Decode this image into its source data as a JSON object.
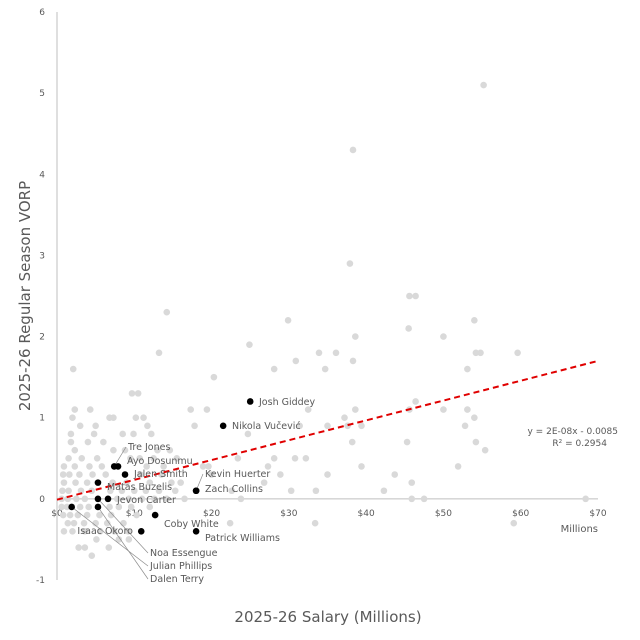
{
  "chart_data": {
    "type": "scatter",
    "title": "",
    "xlabel": "2025-26 Salary (Millions)",
    "ylabel": "2025-26 Regular Season VORP",
    "x_unit_label": "Millions",
    "xlim": [
      0,
      70
    ],
    "ylim": [
      -1,
      6
    ],
    "x_ticks": [
      0,
      10,
      20,
      30,
      40,
      50,
      60,
      70
    ],
    "x_tick_labels": [
      "$0",
      "$10",
      "$20",
      "$30",
      "$40",
      "$50",
      "$60",
      "$70"
    ],
    "y_ticks": [
      -1,
      0,
      1,
      2,
      3,
      4,
      5,
      6
    ],
    "y_tick_labels": [
      "-1",
      "0",
      "1",
      "2",
      "3",
      "4",
      "5",
      "6"
    ],
    "grid": false,
    "colors": {
      "others": "#d9d9d9",
      "highlight": "#000000",
      "trendline": "#e00000",
      "text": "#595959"
    },
    "trendline": {
      "type": "linear",
      "equation": "y = 2E-08x - 0.0085",
      "r_squared": "R² = 0.2954",
      "endpoints": [
        [
          0,
          -0.01
        ],
        [
          70,
          1.7
        ]
      ]
    },
    "highlighted": [
      {
        "name": "Josh Giddey",
        "x": 25.0,
        "y": 1.2
      },
      {
        "name": "Nikola Vučević",
        "x": 21.5,
        "y": 0.9
      },
      {
        "name": "Ayo Dosunmu",
        "x": 7.9,
        "y": 0.4
      },
      {
        "name": "Tre Jones",
        "x": 7.4,
        "y": 0.4
      },
      {
        "name": "Jalen Smith",
        "x": 8.8,
        "y": 0.3
      },
      {
        "name": "Matas Buzelis",
        "x": 5.3,
        "y": 0.2
      },
      {
        "name": "Zach Collins",
        "x": 18.0,
        "y": 0.1
      },
      {
        "name": "Kevin Huerter",
        "x": 18.0,
        "y": 0.1
      },
      {
        "name": "Noa Essengue",
        "x": 5.3,
        "y": 0.0
      },
      {
        "name": "Jevon Carter",
        "x": 6.6,
        "y": 0.0
      },
      {
        "name": "Julian Phillips",
        "x": 1.9,
        "y": -0.1
      },
      {
        "name": "Dalen Terry",
        "x": 5.3,
        "y": -0.1
      },
      {
        "name": "Coby White",
        "x": 12.7,
        "y": -0.2
      },
      {
        "name": "Isaac Okoro",
        "x": 10.9,
        "y": -0.4
      },
      {
        "name": "Patrick Williams",
        "x": 18.0,
        "y": -0.4
      }
    ],
    "others": [
      [
        55.2,
        5.1
      ],
      [
        38.3,
        4.3
      ],
      [
        37.9,
        2.9
      ],
      [
        14.2,
        2.3
      ],
      [
        29.9,
        2.2
      ],
      [
        45.6,
        2.5
      ],
      [
        46.4,
        2.5
      ],
      [
        54.0,
        2.2
      ],
      [
        45.5,
        2.1
      ],
      [
        50.0,
        2.0
      ],
      [
        38.6,
        2.0
      ],
      [
        24.9,
        1.9
      ],
      [
        33.9,
        1.8
      ],
      [
        13.2,
        1.8
      ],
      [
        36.1,
        1.8
      ],
      [
        54.2,
        1.8
      ],
      [
        54.8,
        1.8
      ],
      [
        59.6,
        1.8
      ],
      [
        38.3,
        1.7
      ],
      [
        30.9,
        1.7
      ],
      [
        53.1,
        1.6
      ],
      [
        2.1,
        1.6
      ],
      [
        28.1,
        1.6
      ],
      [
        20.3,
        1.5
      ],
      [
        34.7,
        1.6
      ],
      [
        9.7,
        1.3
      ],
      [
        10.5,
        1.3
      ],
      [
        2.3,
        1.1
      ],
      [
        4.3,
        1.1
      ],
      [
        17.3,
        1.1
      ],
      [
        19.4,
        1.1
      ],
      [
        32.5,
        1.1
      ],
      [
        38.6,
        1.1
      ],
      [
        46.4,
        1.2
      ],
      [
        53.1,
        1.1
      ],
      [
        37.2,
        1.0
      ],
      [
        45.6,
        1.1
      ],
      [
        50.0,
        1.1
      ],
      [
        31.4,
        0.9
      ],
      [
        35.0,
        0.9
      ],
      [
        37.6,
        0.9
      ],
      [
        39.4,
        0.9
      ],
      [
        52.8,
        0.9
      ],
      [
        54.0,
        1.0
      ],
      [
        24.7,
        0.8
      ],
      [
        38.2,
        0.7
      ],
      [
        45.3,
        0.7
      ],
      [
        54.2,
        0.7
      ],
      [
        55.4,
        0.6
      ],
      [
        51.9,
        0.4
      ],
      [
        39.4,
        0.4
      ],
      [
        35.0,
        0.3
      ],
      [
        43.7,
        0.3
      ],
      [
        45.9,
        0.2
      ],
      [
        30.3,
        0.1
      ],
      [
        33.5,
        0.1
      ],
      [
        42.3,
        0.1
      ],
      [
        45.9,
        0.0
      ],
      [
        47.5,
        0.0
      ],
      [
        68.4,
        0.0
      ],
      [
        59.1,
        -0.3
      ],
      [
        33.4,
        -0.3
      ],
      [
        27.3,
        0.4
      ],
      [
        26.8,
        0.2
      ],
      [
        23.4,
        0.5
      ],
      [
        28.1,
        0.5
      ],
      [
        22.6,
        0.1
      ],
      [
        23.8,
        0.0
      ],
      [
        22.4,
        -0.3
      ],
      [
        28.9,
        0.3
      ],
      [
        30.8,
        0.5
      ],
      [
        32.2,
        0.5
      ],
      [
        18.9,
        0.4
      ],
      [
        19.6,
        0.4
      ],
      [
        16.0,
        0.2
      ],
      [
        20.0,
        0.3
      ],
      [
        14.6,
        0.6
      ],
      [
        17.8,
        0.9
      ],
      [
        11.7,
        0.9
      ],
      [
        13.0,
        0.6
      ],
      [
        2.0,
        1.0
      ],
      [
        3.0,
        0.9
      ],
      [
        5.0,
        0.9
      ],
      [
        6.8,
        1.0
      ],
      [
        7.3,
        1.0
      ],
      [
        10.2,
        1.0
      ],
      [
        11.2,
        1.0
      ],
      [
        1.8,
        0.8
      ],
      [
        4.8,
        0.8
      ],
      [
        8.5,
        0.8
      ],
      [
        9.9,
        0.8
      ],
      [
        12.2,
        0.8
      ],
      [
        1.8,
        0.7
      ],
      [
        2.3,
        0.6
      ],
      [
        4.0,
        0.7
      ],
      [
        6.0,
        0.7
      ],
      [
        7.3,
        0.6
      ],
      [
        8.8,
        0.6
      ],
      [
        1.5,
        0.5
      ],
      [
        3.2,
        0.5
      ],
      [
        5.2,
        0.5
      ],
      [
        9.5,
        0.5
      ],
      [
        10.7,
        0.5
      ],
      [
        12.5,
        0.5
      ],
      [
        15.5,
        0.5
      ],
      [
        0.9,
        0.4
      ],
      [
        2.3,
        0.4
      ],
      [
        4.2,
        0.4
      ],
      [
        5.8,
        0.4
      ],
      [
        11.6,
        0.4
      ],
      [
        13.8,
        0.4
      ],
      [
        0.8,
        0.3
      ],
      [
        1.6,
        0.3
      ],
      [
        2.9,
        0.3
      ],
      [
        4.6,
        0.3
      ],
      [
        6.3,
        0.3
      ],
      [
        10.8,
        0.3
      ],
      [
        13.5,
        0.3
      ],
      [
        0.9,
        0.2
      ],
      [
        2.4,
        0.2
      ],
      [
        3.9,
        0.2
      ],
      [
        7.2,
        0.2
      ],
      [
        9.0,
        0.2
      ],
      [
        12.0,
        0.2
      ],
      [
        14.8,
        0.2
      ],
      [
        0.7,
        0.1
      ],
      [
        1.5,
        0.1
      ],
      [
        3.1,
        0.1
      ],
      [
        4.5,
        0.1
      ],
      [
        6.9,
        0.1
      ],
      [
        8.4,
        0.1
      ],
      [
        10.0,
        0.1
      ],
      [
        11.5,
        0.1
      ],
      [
        13.2,
        0.1
      ],
      [
        15.3,
        0.1
      ],
      [
        0.6,
        0.0
      ],
      [
        1.4,
        0.0
      ],
      [
        2.5,
        0.0
      ],
      [
        3.6,
        0.0
      ],
      [
        7.8,
        0.0
      ],
      [
        9.3,
        0.0
      ],
      [
        11.0,
        0.0
      ],
      [
        12.6,
        0.0
      ],
      [
        14.2,
        0.0
      ],
      [
        16.5,
        0.0
      ],
      [
        0.6,
        -0.1
      ],
      [
        1.3,
        -0.1
      ],
      [
        3.0,
        -0.1
      ],
      [
        4.1,
        -0.1
      ],
      [
        6.8,
        -0.1
      ],
      [
        8.0,
        -0.1
      ],
      [
        9.6,
        -0.1
      ],
      [
        12.0,
        -0.1
      ],
      [
        0.8,
        -0.2
      ],
      [
        1.7,
        -0.2
      ],
      [
        2.7,
        -0.2
      ],
      [
        3.9,
        -0.2
      ],
      [
        5.5,
        -0.2
      ],
      [
        7.0,
        -0.2
      ],
      [
        10.3,
        -0.2
      ],
      [
        1.4,
        -0.3
      ],
      [
        2.2,
        -0.3
      ],
      [
        3.5,
        -0.3
      ],
      [
        5.0,
        -0.3
      ],
      [
        6.5,
        -0.3
      ],
      [
        8.6,
        -0.3
      ],
      [
        0.9,
        -0.4
      ],
      [
        2.0,
        -0.4
      ],
      [
        3.6,
        -0.4
      ],
      [
        5.6,
        -0.4
      ],
      [
        7.4,
        -0.4
      ],
      [
        9.2,
        -0.4
      ],
      [
        2.8,
        -0.6
      ],
      [
        3.6,
        -0.6
      ],
      [
        5.1,
        -0.5
      ],
      [
        6.7,
        -0.6
      ],
      [
        8.0,
        -0.5
      ],
      [
        9.3,
        -0.5
      ],
      [
        4.5,
        -0.7
      ]
    ]
  }
}
